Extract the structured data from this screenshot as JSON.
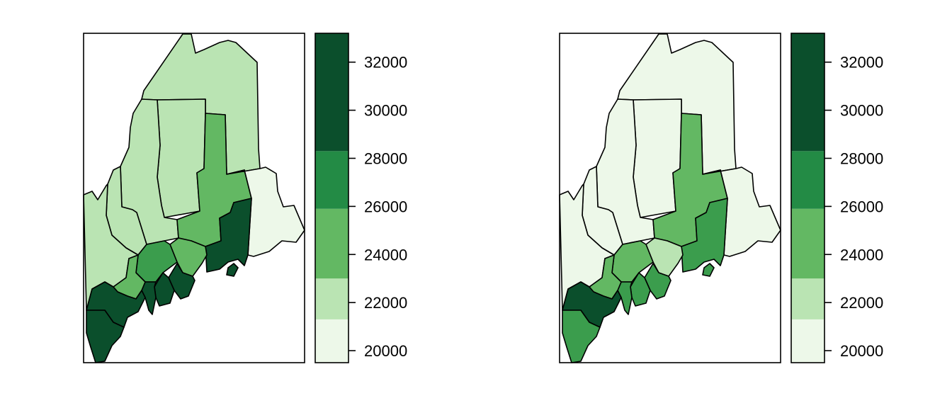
{
  "panels": [
    {
      "name": "left",
      "county_fills": {
        "aroostook": "#bae4b3",
        "washington": "#edf8e9",
        "piscataquis": "#bae4b3",
        "penobscot": "#63b863",
        "hancock": "#0b4f2c",
        "somerset": "#bae4b3",
        "franklin": "#bae4b3",
        "oxford": "#bae4b3",
        "waldo": "#63b863",
        "kennebec": "#3b9d4d",
        "androscoggin": "#63b863",
        "knox": "#0b4f2c",
        "lincoln": "#0b4f2c",
        "sagadahoc": "#0b4f2c",
        "cumberland": "#0b4f2c",
        "york": "#0b4f2c"
      }
    },
    {
      "name": "right",
      "county_fills": {
        "aroostook": "#edf8e9",
        "washington": "#edf8e9",
        "piscataquis": "#edf8e9",
        "penobscot": "#63b863",
        "hancock": "#3b9d4d",
        "somerset": "#edf8e9",
        "franklin": "#edf8e9",
        "oxford": "#edf8e9",
        "waldo": "#bae4b3",
        "kennebec": "#63b863",
        "androscoggin": "#63b863",
        "knox": "#3b9d4d",
        "lincoln": "#3b9d4d",
        "sagadahoc": "#3b9d4d",
        "cumberland": "#0b4f2c",
        "york": "#3b9d4d"
      }
    }
  ],
  "legend": {
    "range": [
      19500,
      33200
    ],
    "bins": [
      {
        "from": 19500,
        "to": 21300,
        "color": "#edf8e9"
      },
      {
        "from": 21300,
        "to": 23000,
        "color": "#bae4b3"
      },
      {
        "from": 23000,
        "to": 25900,
        "color": "#63b863"
      },
      {
        "from": 25900,
        "to": 28300,
        "color": "#238b45"
      },
      {
        "from": 28300,
        "to": 33200,
        "color": "#0b4f2c"
      }
    ],
    "ticks": [
      {
        "value": 20000,
        "label": "20000"
      },
      {
        "value": 22000,
        "label": "22000"
      },
      {
        "value": 24000,
        "label": "24000"
      },
      {
        "value": 26000,
        "label": "26000"
      },
      {
        "value": 28000,
        "label": "28000"
      },
      {
        "value": 30000,
        "label": "30000"
      },
      {
        "value": 32000,
        "label": "32000"
      }
    ]
  }
}
